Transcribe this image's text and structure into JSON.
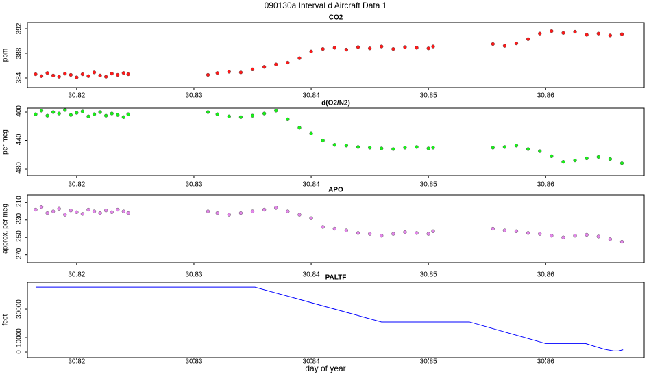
{
  "title": "090130a   Interval d Aircraft Data 1",
  "xlabel": "day of year",
  "chart_data": [
    {
      "type": "scatter",
      "title": "CO2",
      "ylabel": "ppm",
      "color": "#ff0000",
      "xlim": [
        30.8158,
        30.8684
      ],
      "xticks": [
        30.82,
        30.83,
        30.84,
        30.85,
        30.86
      ],
      "ylim": [
        382.44,
        393.0
      ],
      "yticks": [
        384,
        388,
        392
      ],
      "x": [
        30.8165,
        30.817,
        30.8175,
        30.818,
        30.8185,
        30.819,
        30.8195,
        30.82,
        30.8205,
        30.821,
        30.8215,
        30.822,
        30.8225,
        30.823,
        30.8235,
        30.824,
        30.8244,
        30.8312,
        30.832,
        30.833,
        30.834,
        30.835,
        30.836,
        30.837,
        30.838,
        30.839,
        30.84,
        30.841,
        30.842,
        30.843,
        30.844,
        30.845,
        30.846,
        30.847,
        30.848,
        30.849,
        30.85,
        30.8504,
        30.8555,
        30.8565,
        30.8575,
        30.8585,
        30.8595,
        30.8605,
        30.8615,
        30.8625,
        30.8635,
        30.8645,
        30.8655,
        30.8665
      ],
      "values": [
        384.6,
        384.3,
        384.8,
        384.4,
        384.2,
        384.7,
        384.5,
        384.1,
        384.6,
        384.3,
        384.9,
        384.4,
        384.2,
        384.7,
        384.5,
        384.8,
        384.6,
        384.5,
        384.8,
        385.0,
        384.9,
        385.4,
        385.8,
        386.2,
        386.5,
        387.2,
        388.3,
        388.7,
        388.9,
        388.6,
        389.0,
        388.8,
        389.1,
        388.7,
        389.0,
        388.9,
        388.8,
        389.1,
        389.5,
        389.2,
        389.6,
        390.3,
        391.2,
        391.6,
        391.3,
        391.5,
        391.0,
        391.2,
        390.9,
        391.1
      ]
    },
    {
      "type": "scatter",
      "title": "d(O2/N2)",
      "ylabel": "per meg",
      "color": "#00ee00",
      "xlim": [
        30.8158,
        30.8684
      ],
      "xticks": [
        30.82,
        30.83,
        30.84,
        30.85,
        30.86
      ],
      "ylim": [
        -489.6,
        -394.2
      ],
      "yticks": [
        -400,
        -440,
        -480
      ],
      "x": [
        30.8165,
        30.817,
        30.8175,
        30.818,
        30.8185,
        30.819,
        30.8195,
        30.82,
        30.8205,
        30.821,
        30.8215,
        30.822,
        30.8225,
        30.823,
        30.8235,
        30.824,
        30.8244,
        30.8312,
        30.832,
        30.833,
        30.834,
        30.835,
        30.836,
        30.837,
        30.838,
        30.839,
        30.84,
        30.841,
        30.842,
        30.843,
        30.844,
        30.845,
        30.846,
        30.847,
        30.848,
        30.849,
        30.85,
        30.8504,
        30.8555,
        30.8565,
        30.8575,
        30.8585,
        30.8595,
        30.8605,
        30.8615,
        30.8625,
        30.8635,
        30.8645,
        30.8655,
        30.8665
      ],
      "values": [
        -403,
        -398,
        -405,
        -400,
        -402,
        -397,
        -404,
        -401,
        -399,
        -406,
        -403,
        -400,
        -405,
        -402,
        -404,
        -407,
        -403,
        -400,
        -403,
        -406,
        -407,
        -405,
        -402,
        -398,
        -410,
        -422,
        -430,
        -440,
        -446,
        -447,
        -449,
        -450,
        -451,
        -452,
        -450,
        -449,
        -451,
        -450,
        -450,
        -449,
        -447,
        -452,
        -455,
        -462,
        -470,
        -468,
        -465,
        -463,
        -466,
        -472
      ]
    },
    {
      "type": "scatter",
      "title": "APO",
      "ylabel": "approx. per meg",
      "color": "#e07ae8",
      "xlim": [
        30.8158,
        30.8684
      ],
      "xticks": [
        30.82,
        30.83,
        30.84,
        30.85,
        30.86
      ],
      "ylim": [
        -278.9,
        -201.1
      ],
      "yticks": [
        -210,
        -230,
        -250,
        -270
      ],
      "x": [
        30.8165,
        30.817,
        30.8175,
        30.818,
        30.8185,
        30.819,
        30.8195,
        30.82,
        30.8205,
        30.821,
        30.8215,
        30.822,
        30.8225,
        30.823,
        30.8235,
        30.824,
        30.8244,
        30.8312,
        30.832,
        30.833,
        30.834,
        30.835,
        30.836,
        30.837,
        30.838,
        30.839,
        30.84,
        30.841,
        30.842,
        30.843,
        30.844,
        30.845,
        30.846,
        30.847,
        30.848,
        30.849,
        30.85,
        30.8504,
        30.8555,
        30.8565,
        30.8575,
        30.8585,
        30.8595,
        30.8605,
        30.8615,
        30.8625,
        30.8635,
        30.8645,
        30.8655,
        30.8665
      ],
      "values": [
        -218,
        -215,
        -222,
        -220,
        -217,
        -224,
        -219,
        -221,
        -223,
        -218,
        -220,
        -222,
        -219,
        -221,
        -218,
        -220,
        -222,
        -220,
        -222,
        -224,
        -222,
        -220,
        -218,
        -216,
        -220,
        -224,
        -228,
        -238,
        -240,
        -242,
        -245,
        -246,
        -248,
        -246,
        -244,
        -245,
        -246,
        -243,
        -240,
        -242,
        -243,
        -245,
        -246,
        -248,
        -250,
        -248,
        -247,
        -249,
        -252,
        -255
      ]
    },
    {
      "type": "line",
      "title": "PALTF",
      "ylabel": "feet",
      "color": "#0000ff",
      "xlim": [
        30.8158,
        30.8684
      ],
      "xticks": [
        30.82,
        30.83,
        30.84,
        30.85,
        30.86
      ],
      "ylim": [
        -3800,
        48600
      ],
      "yticks": [
        0,
        10000,
        30000
      ],
      "x": [
        30.8165,
        30.8352,
        30.846,
        30.8535,
        30.86,
        30.8634,
        30.865,
        30.8658,
        30.8662,
        30.8666
      ],
      "values": [
        45200,
        45200,
        21000,
        21000,
        6000,
        6000,
        2000,
        800,
        800,
        1600
      ]
    }
  ]
}
